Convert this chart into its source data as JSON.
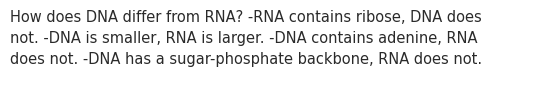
{
  "text": "How does DNA differ from RNA? -RNA contains ribose, DNA does\nnot. -DNA is smaller, RNA is larger. -DNA contains adenine, RNA\ndoes not. -DNA has a sugar-phosphate backbone, RNA does not.",
  "background_color": "#ffffff",
  "text_color": "#2a2a2a",
  "font_size": 10.5,
  "font_family": "DejaVu Sans",
  "fig_width": 5.58,
  "fig_height": 1.05,
  "dpi": 100
}
